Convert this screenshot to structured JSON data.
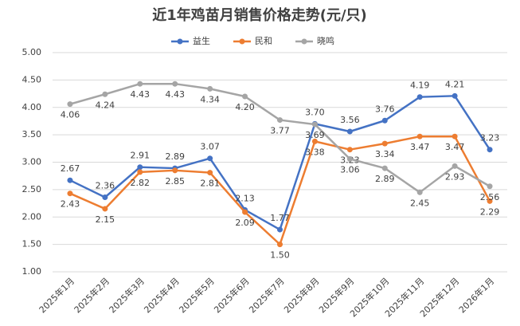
{
  "chart_data": {
    "type": "line",
    "title": "近1年鸡苗月销售价格走势(元/只)",
    "categories": [
      "2025年1月",
      "2025年2月",
      "2025年3月",
      "2025年4月",
      "2025年5月",
      "2025年6月",
      "2025年7月",
      "2025年8月",
      "2025年9月",
      "2025年10月",
      "2025年11月",
      "2025年12月",
      "2026年1月"
    ],
    "series": [
      {
        "name": "益生",
        "color": "#4472c4",
        "values": [
          2.67,
          2.36,
          2.91,
          2.89,
          3.07,
          2.13,
          1.77,
          3.7,
          3.56,
          3.76,
          4.19,
          4.21,
          3.23
        ],
        "value_labels": [
          "2.67",
          "2.36",
          "2.91",
          "2.89",
          "3.07",
          "2.13",
          "1.77",
          "3.70",
          "3.56",
          "3.76",
          "4.19",
          "4.21",
          "3.23"
        ]
      },
      {
        "name": "民和",
        "color": "#ed7d31",
        "values": [
          2.43,
          2.15,
          2.82,
          2.85,
          2.81,
          2.09,
          1.5,
          3.38,
          3.23,
          3.34,
          3.47,
          3.47,
          2.29
        ],
        "value_labels": [
          "2.43",
          "2.15",
          "2.82",
          "2.85",
          "2.81",
          "2.09",
          "1.50",
          "3.38",
          "3.23",
          "3.34",
          "3.47",
          "3.47",
          "2.29"
        ]
      },
      {
        "name": "晓鸣",
        "color": "#a5a5a5",
        "values": [
          4.06,
          4.24,
          4.43,
          4.43,
          4.34,
          4.2,
          3.77,
          3.69,
          3.06,
          2.89,
          2.45,
          2.93,
          2.56
        ],
        "value_labels": [
          "4.06",
          "4.24",
          "4.43",
          "4.43",
          "4.34",
          "4.20",
          "3.77",
          "3.69",
          "3.06",
          "2.89",
          "2.45",
          "2.93",
          "2.56"
        ]
      }
    ],
    "ylim": [
      1,
      5
    ],
    "yticks": [
      {
        "value": 1,
        "label": "1.00"
      },
      {
        "value": 1.5,
        "label": "1.50"
      },
      {
        "value": 2,
        "label": "2.00"
      },
      {
        "value": 2.5,
        "label": "2.50"
      },
      {
        "value": 3,
        "label": "3.00"
      },
      {
        "value": 3.5,
        "label": "3.50"
      },
      {
        "value": 4,
        "label": "4.00"
      },
      {
        "value": 4.5,
        "label": "4.50"
      },
      {
        "value": 5,
        "label": "5.00"
      }
    ],
    "grid": true,
    "legend": "top"
  }
}
